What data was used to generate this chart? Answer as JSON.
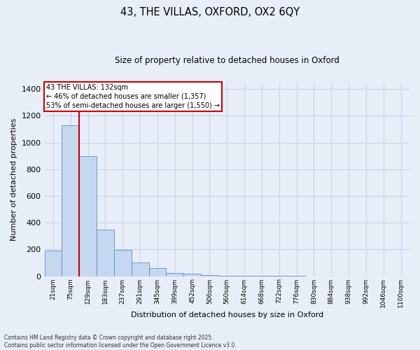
{
  "title": "43, THE VILLAS, OXFORD, OX2 6QY",
  "subtitle": "Size of property relative to detached houses in Oxford",
  "xlabel": "Distribution of detached houses by size in Oxford",
  "ylabel": "Number of detached properties",
  "bin_labels": [
    "21sqm",
    "75sqm",
    "129sqm",
    "183sqm",
    "237sqm",
    "291sqm",
    "345sqm",
    "399sqm",
    "452sqm",
    "506sqm",
    "560sqm",
    "614sqm",
    "668sqm",
    "722sqm",
    "776sqm",
    "830sqm",
    "884sqm",
    "938sqm",
    "992sqm",
    "1046sqm",
    "1100sqm"
  ],
  "bar_values": [
    193,
    1130,
    900,
    350,
    197,
    100,
    62,
    22,
    17,
    10,
    5,
    3,
    2,
    1,
    1,
    0,
    0,
    0,
    0,
    0,
    0
  ],
  "bar_color": "#c5d8f0",
  "bar_edge_color": "#5b8ec4",
  "vline_x": 1.5,
  "vline_color": "#cc0000",
  "annotation_text": "43 THE VILLAS: 132sqm\n← 46% of detached houses are smaller (1,357)\n53% of semi-detached houses are larger (1,550) →",
  "annotation_box_color": "white",
  "annotation_box_edge": "#cc0000",
  "ylim": [
    0,
    1450
  ],
  "yticks": [
    0,
    200,
    400,
    600,
    800,
    1000,
    1200,
    1400
  ],
  "footer_line1": "Contains HM Land Registry data © Crown copyright and database right 2025.",
  "footer_line2": "Contains public sector information licensed under the Open Government Licence v3.0.",
  "background_color": "#e8eef8",
  "grid_color": "#c8d4e8"
}
